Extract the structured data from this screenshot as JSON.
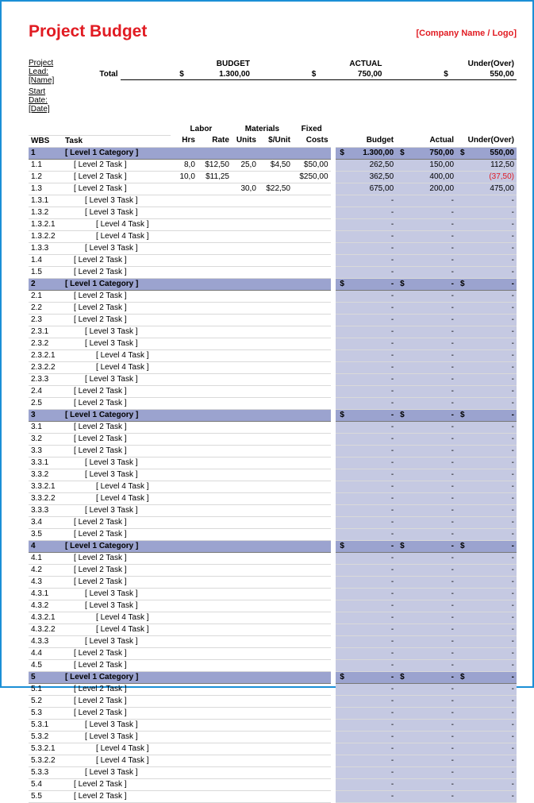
{
  "title": "Project Budget",
  "logo": "[Company Name / Logo]",
  "meta": {
    "lead_label": "Project Lead:",
    "lead_value": "[Name]",
    "start_label": "Start Date:",
    "start_value": "[Date]"
  },
  "summary": {
    "budget_label": "BUDGET",
    "actual_label": "ACTUAL",
    "uo_label": "Under(Over)",
    "total_label": "Total",
    "currency": "$",
    "budget": "1.300,00",
    "actual": "750,00",
    "under_over": "550,00"
  },
  "columns": {
    "wbs": "WBS",
    "task": "Task",
    "labor": "Labor",
    "hrs": "Hrs",
    "rate": "Rate",
    "materials": "Materials",
    "units": "Units",
    "perunit": "$/Unit",
    "fixed": "Fixed",
    "costs": "Costs",
    "budget": "Budget",
    "actual": "Actual",
    "uo": "Under(Over)"
  },
  "colors": {
    "border": "#1b8fd6",
    "title": "#e11b22",
    "cat_band": "#9ba3cf",
    "shade": "#c5c9e2",
    "grid": "#d9d9d9"
  },
  "currency": "$",
  "rows": [
    {
      "t": "cat",
      "wbs": "1",
      "task": "[ Level 1 Category ]",
      "budget": "1.300,00",
      "actual": "750,00",
      "uo": "550,00"
    },
    {
      "t": "r",
      "wbs": "1.1",
      "task": "[ Level 2 Task ]",
      "ind": 1,
      "hrs": "8,0",
      "rate": "$12,50",
      "units": "25,0",
      "perunit": "$4,50",
      "fixed": "$50,00",
      "budget": "262,50",
      "actual": "150,00",
      "uo": "112,50"
    },
    {
      "t": "r",
      "wbs": "1.2",
      "task": "[ Level 2 Task ]",
      "ind": 1,
      "hrs": "10,0",
      "rate": "$11,25",
      "fixed": "$250,00",
      "budget": "362,50",
      "actual": "400,00",
      "uo": "(37,50)",
      "neg": true
    },
    {
      "t": "r",
      "wbs": "1.3",
      "task": "[ Level 2 Task ]",
      "ind": 1,
      "units": "30,0",
      "perunit": "$22,50",
      "budget": "675,00",
      "actual": "200,00",
      "uo": "475,00"
    },
    {
      "t": "r",
      "wbs": "1.3.1",
      "task": "[ Level 3 Task ]",
      "ind": 2,
      "budget": "-",
      "actual": "-",
      "uo": "-"
    },
    {
      "t": "r",
      "wbs": "1.3.2",
      "task": "[ Level 3 Task ]",
      "ind": 2,
      "budget": "-",
      "actual": "-",
      "uo": "-"
    },
    {
      "t": "r",
      "wbs": "1.3.2.1",
      "task": "[ Level 4 Task ]",
      "ind": 3,
      "budget": "-",
      "actual": "-",
      "uo": "-"
    },
    {
      "t": "r",
      "wbs": "1.3.2.2",
      "task": "[ Level 4 Task ]",
      "ind": 3,
      "budget": "-",
      "actual": "-",
      "uo": "-"
    },
    {
      "t": "r",
      "wbs": "1.3.3",
      "task": "[ Level 3 Task ]",
      "ind": 2,
      "budget": "-",
      "actual": "-",
      "uo": "-"
    },
    {
      "t": "r",
      "wbs": "1.4",
      "task": "[ Level 2 Task ]",
      "ind": 1,
      "budget": "-",
      "actual": "-",
      "uo": "-"
    },
    {
      "t": "r",
      "wbs": "1.5",
      "task": "[ Level 2 Task ]",
      "ind": 1,
      "budget": "-",
      "actual": "-",
      "uo": "-"
    },
    {
      "t": "cat",
      "wbs": "2",
      "task": "[ Level 1 Category ]",
      "budget": "-",
      "actual": "-",
      "uo": "-"
    },
    {
      "t": "r",
      "wbs": "2.1",
      "task": "[ Level 2 Task ]",
      "ind": 1,
      "budget": "-",
      "actual": "-",
      "uo": "-"
    },
    {
      "t": "r",
      "wbs": "2.2",
      "task": "[ Level 2 Task ]",
      "ind": 1,
      "budget": "-",
      "actual": "-",
      "uo": "-"
    },
    {
      "t": "r",
      "wbs": "2.3",
      "task": "[ Level 2 Task ]",
      "ind": 1,
      "budget": "-",
      "actual": "-",
      "uo": "-"
    },
    {
      "t": "r",
      "wbs": "2.3.1",
      "task": "[ Level 3 Task ]",
      "ind": 2,
      "budget": "-",
      "actual": "-",
      "uo": "-"
    },
    {
      "t": "r",
      "wbs": "2.3.2",
      "task": "[ Level 3 Task ]",
      "ind": 2,
      "budget": "-",
      "actual": "-",
      "uo": "-"
    },
    {
      "t": "r",
      "wbs": "2.3.2.1",
      "task": "[ Level 4 Task ]",
      "ind": 3,
      "budget": "-",
      "actual": "-",
      "uo": "-"
    },
    {
      "t": "r",
      "wbs": "2.3.2.2",
      "task": "[ Level 4 Task ]",
      "ind": 3,
      "budget": "-",
      "actual": "-",
      "uo": "-"
    },
    {
      "t": "r",
      "wbs": "2.3.3",
      "task": "[ Level 3 Task ]",
      "ind": 2,
      "budget": "-",
      "actual": "-",
      "uo": "-"
    },
    {
      "t": "r",
      "wbs": "2.4",
      "task": "[ Level 2 Task ]",
      "ind": 1,
      "budget": "-",
      "actual": "-",
      "uo": "-"
    },
    {
      "t": "r",
      "wbs": "2.5",
      "task": "[ Level 2 Task ]",
      "ind": 1,
      "budget": "-",
      "actual": "-",
      "uo": "-"
    },
    {
      "t": "cat",
      "wbs": "3",
      "task": "[ Level 1 Category ]",
      "budget": "-",
      "actual": "-",
      "uo": "-"
    },
    {
      "t": "r",
      "wbs": "3.1",
      "task": "[ Level 2 Task ]",
      "ind": 1,
      "budget": "-",
      "actual": "-",
      "uo": "-"
    },
    {
      "t": "r",
      "wbs": "3.2",
      "task": "[ Level 2 Task ]",
      "ind": 1,
      "budget": "-",
      "actual": "-",
      "uo": "-"
    },
    {
      "t": "r",
      "wbs": "3.3",
      "task": "[ Level 2 Task ]",
      "ind": 1,
      "budget": "-",
      "actual": "-",
      "uo": "-"
    },
    {
      "t": "r",
      "wbs": "3.3.1",
      "task": "[ Level 3 Task ]",
      "ind": 2,
      "budget": "-",
      "actual": "-",
      "uo": "-"
    },
    {
      "t": "r",
      "wbs": "3.3.2",
      "task": "[ Level 3 Task ]",
      "ind": 2,
      "budget": "-",
      "actual": "-",
      "uo": "-"
    },
    {
      "t": "r",
      "wbs": "3.3.2.1",
      "task": "[ Level 4 Task ]",
      "ind": 3,
      "budget": "-",
      "actual": "-",
      "uo": "-"
    },
    {
      "t": "r",
      "wbs": "3.3.2.2",
      "task": "[ Level 4 Task ]",
      "ind": 3,
      "budget": "-",
      "actual": "-",
      "uo": "-"
    },
    {
      "t": "r",
      "wbs": "3.3.3",
      "task": "[ Level 3 Task ]",
      "ind": 2,
      "budget": "-",
      "actual": "-",
      "uo": "-"
    },
    {
      "t": "r",
      "wbs": "3.4",
      "task": "[ Level 2 Task ]",
      "ind": 1,
      "budget": "-",
      "actual": "-",
      "uo": "-"
    },
    {
      "t": "r",
      "wbs": "3.5",
      "task": "[ Level 2 Task ]",
      "ind": 1,
      "budget": "-",
      "actual": "-",
      "uo": "-"
    },
    {
      "t": "cat",
      "wbs": "4",
      "task": "[ Level 1 Category ]",
      "budget": "-",
      "actual": "-",
      "uo": "-"
    },
    {
      "t": "r",
      "wbs": "4.1",
      "task": "[ Level 2 Task ]",
      "ind": 1,
      "budget": "-",
      "actual": "-",
      "uo": "-"
    },
    {
      "t": "r",
      "wbs": "4.2",
      "task": "[ Level 2 Task ]",
      "ind": 1,
      "budget": "-",
      "actual": "-",
      "uo": "-"
    },
    {
      "t": "r",
      "wbs": "4.3",
      "task": "[ Level 2 Task ]",
      "ind": 1,
      "budget": "-",
      "actual": "-",
      "uo": "-"
    },
    {
      "t": "r",
      "wbs": "4.3.1",
      "task": "[ Level 3 Task ]",
      "ind": 2,
      "budget": "-",
      "actual": "-",
      "uo": "-"
    },
    {
      "t": "r",
      "wbs": "4.3.2",
      "task": "[ Level 3 Task ]",
      "ind": 2,
      "budget": "-",
      "actual": "-",
      "uo": "-"
    },
    {
      "t": "r",
      "wbs": "4.3.2.1",
      "task": "[ Level 4 Task ]",
      "ind": 3,
      "budget": "-",
      "actual": "-",
      "uo": "-"
    },
    {
      "t": "r",
      "wbs": "4.3.2.2",
      "task": "[ Level 4 Task ]",
      "ind": 3,
      "budget": "-",
      "actual": "-",
      "uo": "-"
    },
    {
      "t": "r",
      "wbs": "4.3.3",
      "task": "[ Level 3 Task ]",
      "ind": 2,
      "budget": "-",
      "actual": "-",
      "uo": "-"
    },
    {
      "t": "r",
      "wbs": "4.4",
      "task": "[ Level 2 Task ]",
      "ind": 1,
      "budget": "-",
      "actual": "-",
      "uo": "-"
    },
    {
      "t": "r",
      "wbs": "4.5",
      "task": "[ Level 2 Task ]",
      "ind": 1,
      "budget": "-",
      "actual": "-",
      "uo": "-"
    },
    {
      "t": "cat",
      "wbs": "5",
      "task": "[ Level 1 Category ]",
      "budget": "-",
      "actual": "-",
      "uo": "-"
    },
    {
      "t": "r",
      "wbs": "5.1",
      "task": "[ Level 2 Task ]",
      "ind": 1,
      "budget": "-",
      "actual": "-",
      "uo": "-"
    },
    {
      "t": "r",
      "wbs": "5.2",
      "task": "[ Level 2 Task ]",
      "ind": 1,
      "budget": "-",
      "actual": "-",
      "uo": "-"
    },
    {
      "t": "r",
      "wbs": "5.3",
      "task": "[ Level 2 Task ]",
      "ind": 1,
      "budget": "-",
      "actual": "-",
      "uo": "-"
    },
    {
      "t": "r",
      "wbs": "5.3.1",
      "task": "[ Level 3 Task ]",
      "ind": 2,
      "budget": "-",
      "actual": "-",
      "uo": "-"
    },
    {
      "t": "r",
      "wbs": "5.3.2",
      "task": "[ Level 3 Task ]",
      "ind": 2,
      "budget": "-",
      "actual": "-",
      "uo": "-"
    },
    {
      "t": "r",
      "wbs": "5.3.2.1",
      "task": "[ Level 4 Task ]",
      "ind": 3,
      "budget": "-",
      "actual": "-",
      "uo": "-"
    },
    {
      "t": "r",
      "wbs": "5.3.2.2",
      "task": "[ Level 4 Task ]",
      "ind": 3,
      "budget": "-",
      "actual": "-",
      "uo": "-"
    },
    {
      "t": "r",
      "wbs": "5.3.3",
      "task": "[ Level 3 Task ]",
      "ind": 2,
      "budget": "-",
      "actual": "-",
      "uo": "-"
    },
    {
      "t": "r",
      "wbs": "5.4",
      "task": "[ Level 2 Task ]",
      "ind": 1,
      "budget": "-",
      "actual": "-",
      "uo": "-"
    },
    {
      "t": "r",
      "wbs": "5.5",
      "task": "[ Level 2 Task ]",
      "ind": 1,
      "budget": "-",
      "actual": "-",
      "uo": "-"
    }
  ]
}
